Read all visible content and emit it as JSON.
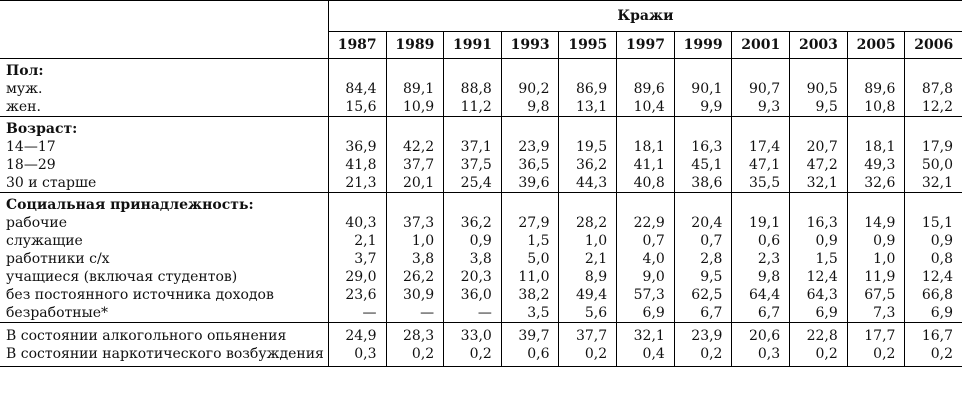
{
  "header": {
    "title": "Кражи",
    "years": [
      "1987",
      "1989",
      "1991",
      "1993",
      "1995",
      "1997",
      "1999",
      "2001",
      "2003",
      "2005",
      "2006"
    ]
  },
  "groups": [
    {
      "title": "Пол:",
      "rows": [
        {
          "label": "муж.",
          "values": [
            "84,4",
            "89,1",
            "88,8",
            "90,2",
            "86,9",
            "89,6",
            "90,1",
            "90,7",
            "90,5",
            "89,6",
            "87,8"
          ]
        },
        {
          "label": "жен.",
          "values": [
            "15,6",
            "10,9",
            "11,2",
            "9,8",
            "13,1",
            "10,4",
            "9,9",
            "9,3",
            "9,5",
            "10,8",
            "12,2"
          ]
        }
      ]
    },
    {
      "title": "Возраст:",
      "rows": [
        {
          "label": "14—17",
          "values": [
            "36,9",
            "42,2",
            "37,1",
            "23,9",
            "19,5",
            "18,1",
            "16,3",
            "17,4",
            "20,7",
            "18,1",
            "17,9"
          ]
        },
        {
          "label": "18—29",
          "values": [
            "41,8",
            "37,7",
            "37,5",
            "36,5",
            "36,2",
            "41,1",
            "45,1",
            "47,1",
            "47,2",
            "49,3",
            "50,0"
          ]
        },
        {
          "label": "30 и старше",
          "values": [
            "21,3",
            "20,1",
            "25,4",
            "39,6",
            "44,3",
            "40,8",
            "38,6",
            "35,5",
            "32,1",
            "32,6",
            "32,1"
          ]
        }
      ]
    },
    {
      "title": "Социальная принадлежность:",
      "rows": [
        {
          "label": "рабочие",
          "values": [
            "40,3",
            "37,3",
            "36,2",
            "27,9",
            "28,2",
            "22,9",
            "20,4",
            "19,1",
            "16,3",
            "14,9",
            "15,1"
          ]
        },
        {
          "label": "служащие",
          "values": [
            "2,1",
            "1,0",
            "0,9",
            "1,5",
            "1,0",
            "0,7",
            "0,7",
            "0,6",
            "0,9",
            "0,9",
            "0,9"
          ]
        },
        {
          "label": "работники с/х",
          "values": [
            "3,7",
            "3,8",
            "3,8",
            "5,0",
            "2,1",
            "4,0",
            "2,8",
            "2,3",
            "1,5",
            "1,0",
            "0,8"
          ]
        },
        {
          "label": "учащиеся (включая студентов)",
          "values": [
            "29,0",
            "26,2",
            "20,3",
            "11,0",
            "8,9",
            "9,0",
            "9,5",
            "9,8",
            "12,4",
            "11,9",
            "12,4"
          ]
        },
        {
          "label": "без постоянного источника доходов",
          "values": [
            "23,6",
            "30,9",
            "36,0",
            "38,2",
            "49,4",
            "57,3",
            "62,5",
            "64,4",
            "64,3",
            "67,5",
            "66,8"
          ]
        },
        {
          "label": "безработные*",
          "values": [
            "—",
            "—",
            "—",
            "3,5",
            "5,6",
            "6,9",
            "6,7",
            "6,7",
            "6,9",
            "7,3",
            "6,9"
          ]
        }
      ]
    },
    {
      "title": "",
      "rows": [
        {
          "label": "В состоянии алкогольного опьянения",
          "values": [
            "24,9",
            "28,3",
            "33,0",
            "39,7",
            "37,7",
            "32,1",
            "23,9",
            "20,6",
            "22,8",
            "17,7",
            "16,7"
          ]
        },
        {
          "label": "В состоянии наркотического возбуждения",
          "values": [
            "0,3",
            "0,2",
            "0,2",
            "0,6",
            "0,2",
            "0,4",
            "0,2",
            "0,3",
            "0,2",
            "0,2",
            "0,2"
          ]
        }
      ]
    }
  ]
}
